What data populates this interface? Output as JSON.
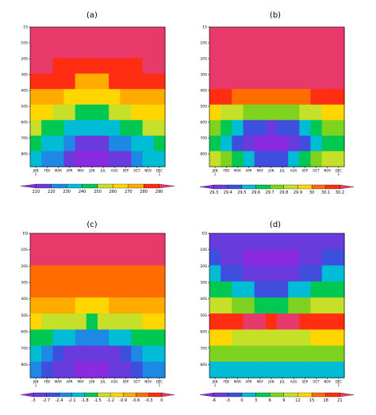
{
  "chart_data": [
    {
      "type": "heatmap",
      "title": "(a)",
      "x_ticks": [
        "JAN",
        "FEB",
        "MAR",
        "APR",
        "MAY",
        "JUN",
        "JUL",
        "AUG",
        "SEP",
        "OCT",
        "NOV",
        "DEC"
      ],
      "x_tick_sub": [
        "1",
        "",
        "",
        "",
        "",
        "",
        "",
        "",
        "",
        "",
        "",
        "1"
      ],
      "y_ticks": [
        "1S",
        "10S",
        "20S",
        "30S",
        "40S",
        "50S",
        "60S",
        "70S",
        "80S"
      ],
      "colorbar_values": [
        210,
        220,
        230,
        240,
        250,
        260,
        270,
        280,
        290
      ],
      "colorbar_labels": [
        "210",
        "220",
        "230",
        "240",
        "250",
        "260",
        "270",
        "280",
        "290"
      ],
      "grid": [
        [
          291,
          291,
          291,
          291,
          291,
          291,
          291,
          291,
          291,
          291,
          291,
          291
        ],
        [
          291,
          291,
          291,
          291,
          291,
          291,
          291,
          291,
          291,
          291,
          291,
          291
        ],
        [
          291,
          291,
          290,
          289,
          288,
          287,
          287,
          288,
          289,
          290,
          291,
          291
        ],
        [
          286,
          285,
          283,
          281,
          279,
          278,
          279,
          281,
          283,
          285,
          286,
          286
        ],
        [
          276,
          274,
          271,
          268,
          266,
          264,
          265,
          268,
          271,
          274,
          276,
          276
        ],
        [
          264,
          261,
          257,
          253,
          250,
          248,
          249,
          253,
          257,
          261,
          264,
          264
        ],
        [
          252,
          248,
          243,
          238,
          234,
          231,
          232,
          237,
          242,
          247,
          251,
          252
        ],
        [
          241,
          237,
          231,
          225,
          220,
          216,
          217,
          223,
          229,
          235,
          240,
          241
        ],
        [
          232,
          228,
          222,
          216,
          210,
          206,
          207,
          213,
          219,
          226,
          231,
          232
        ]
      ]
    },
    {
      "type": "heatmap",
      "title": "(b)",
      "x_ticks": [
        "JAN",
        "FEB",
        "MAR",
        "APR",
        "MAY",
        "JUN",
        "JUL",
        "AUG",
        "SEP",
        "OCT",
        "NOV",
        "DEC"
      ],
      "x_tick_sub": [
        "1",
        "",
        "",
        "",
        "",
        "",
        "",
        "",
        "",
        "",
        "",
        "1"
      ],
      "y_ticks": [
        "1S",
        "10S",
        "20S",
        "30S",
        "40S",
        "50S",
        "60S",
        "70S",
        "80S"
      ],
      "colorbar_values": [
        29.3,
        29.4,
        29.5,
        29.6,
        29.7,
        29.8,
        29.9,
        30,
        30.1,
        30.2
      ],
      "colorbar_labels": [
        "29.3",
        "29.4",
        "29.5",
        "29.6",
        "29.7",
        "29.8",
        "29.9",
        "30",
        "30.1",
        "30.2"
      ],
      "grid": [
        [
          30.3,
          30.3,
          30.3,
          30.3,
          30.3,
          30.3,
          30.3,
          30.3,
          30.3,
          30.3,
          30.3,
          30.3
        ],
        [
          30.3,
          30.3,
          30.3,
          30.3,
          30.3,
          30.3,
          30.3,
          30.3,
          30.3,
          30.3,
          30.3,
          30.3
        ],
        [
          30.3,
          30.3,
          30.3,
          30.3,
          30.3,
          30.3,
          30.3,
          30.3,
          30.3,
          30.3,
          30.3,
          30.3
        ],
        [
          30.3,
          30.3,
          30.3,
          30.3,
          30.3,
          30.3,
          30.3,
          30.3,
          30.3,
          30.3,
          30.3,
          30.3
        ],
        [
          30.2,
          30.2,
          30.1,
          30.1,
          30.1,
          30.1,
          30.1,
          30.1,
          30.1,
          30.2,
          30.2,
          30.2
        ],
        [
          30.0,
          29.9,
          29.9,
          29.8,
          29.8,
          29.8,
          29.8,
          29.8,
          29.9,
          29.9,
          30.0,
          30.0
        ],
        [
          29.8,
          29.7,
          29.6,
          29.5,
          29.5,
          29.4,
          29.5,
          29.5,
          29.6,
          29.7,
          29.8,
          29.8
        ],
        [
          29.7,
          29.6,
          29.5,
          29.4,
          29.3,
          29.3,
          29.3,
          29.4,
          29.5,
          29.6,
          29.7,
          29.7
        ],
        [
          29.9,
          29.8,
          29.7,
          29.6,
          29.5,
          29.5,
          29.5,
          29.6,
          29.7,
          29.8,
          29.9,
          29.9
        ]
      ]
    },
    {
      "type": "heatmap",
      "title": "(c)",
      "x_ticks": [
        "JAN",
        "FEB",
        "MAR",
        "APR",
        "MAY",
        "JUN",
        "JUL",
        "AUG",
        "SEP",
        "OCT",
        "NOV",
        "DEC"
      ],
      "x_tick_sub": [
        "1",
        "",
        "",
        "",
        "",
        "",
        "",
        "",
        "",
        "",
        "",
        "1"
      ],
      "y_ticks": [
        "EQ",
        "10S",
        "20S",
        "30S",
        "40S",
        "50S",
        "60S",
        "70S",
        "80S"
      ],
      "colorbar_values": [
        -3,
        -2.7,
        -2.4,
        -2.1,
        -1.8,
        -1.5,
        -1.2,
        -0.9,
        -0.6,
        -0.3,
        0
      ],
      "colorbar_labels": [
        "-3",
        "-2.7",
        "-2.4",
        "-2.1",
        "-1.8",
        "-1.5",
        "-1.2",
        "-0.9",
        "-0.6",
        "-0.3",
        "0"
      ],
      "grid": [
        [
          0.05,
          0.05,
          0.05,
          0.05,
          0.05,
          0.05,
          0.05,
          0.05,
          0.05,
          0.05,
          0.05,
          0.05
        ],
        [
          0.05,
          0.05,
          0.05,
          0.05,
          0.05,
          0.05,
          0.05,
          0.05,
          0.05,
          0.05,
          0.05,
          0.05
        ],
        [
          -0.45,
          -0.45,
          -0.45,
          -0.45,
          -0.45,
          -0.45,
          -0.45,
          -0.45,
          -0.45,
          -0.45,
          -0.45,
          -0.45
        ],
        [
          -0.45,
          -0.45,
          -0.5,
          -0.5,
          -0.55,
          -0.55,
          -0.55,
          -0.5,
          -0.5,
          -0.45,
          -0.45,
          -0.45
        ],
        [
          -0.75,
          -0.75,
          -0.8,
          -0.85,
          -0.9,
          -0.9,
          -0.9,
          -0.85,
          -0.8,
          -0.75,
          -0.75,
          -0.75
        ],
        [
          -1.1,
          -1.2,
          -1.3,
          -1.4,
          -1.45,
          -1.5,
          -1.45,
          -1.4,
          -1.3,
          -1.2,
          -1.1,
          -1.1
        ],
        [
          -1.6,
          -1.7,
          -1.9,
          -2.0,
          -2.1,
          -2.1,
          -2.1,
          -2.0,
          -1.9,
          -1.7,
          -1.6,
          -1.6
        ],
        [
          -2.0,
          -2.2,
          -2.5,
          -2.7,
          -2.8,
          -2.9,
          -2.8,
          -2.7,
          -2.5,
          -2.2,
          -2.0,
          -2.0
        ],
        [
          -2.2,
          -2.4,
          -2.7,
          -2.9,
          -3.0,
          -3.1,
          -3.0,
          -2.9,
          -2.7,
          -2.4,
          -2.2,
          -2.2
        ]
      ]
    },
    {
      "type": "heatmap",
      "title": "(d)",
      "x_ticks": [
        "JAN",
        "FEB",
        "MAR",
        "APR",
        "MAY",
        "JUN",
        "JUL",
        "AUG",
        "SEP",
        "OCT",
        "NOV",
        "DEC"
      ],
      "x_tick_sub": [
        "1",
        "",
        "",
        "",
        "",
        "",
        "",
        "",
        "",
        "",
        "",
        "1"
      ],
      "y_ticks": [
        "EQ",
        "10S",
        "20S",
        "30S",
        "40S",
        "50S",
        "60S",
        "70S",
        "80S"
      ],
      "colorbar_values": [
        -6,
        -3,
        0,
        3,
        6,
        9,
        12,
        15,
        18,
        21
      ],
      "colorbar_labels": [
        "-6",
        "-3",
        "0",
        "3",
        "6",
        "9",
        "12",
        "15",
        "18",
        "21"
      ],
      "grid": [
        [
          -4,
          -4,
          -4,
          -4,
          -4,
          -4,
          -4,
          -4,
          -4,
          -4,
          -4,
          -4
        ],
        [
          -1,
          -3,
          -5,
          -6,
          -6,
          -6,
          -6,
          -6,
          -5,
          -3,
          -1,
          -1
        ],
        [
          2,
          0,
          -2,
          -4,
          -5,
          -5,
          -5,
          -4,
          -2,
          0,
          2,
          2
        ],
        [
          5,
          4,
          2,
          1,
          0,
          -1,
          0,
          1,
          2,
          4,
          5,
          5
        ],
        [
          12,
          10,
          8,
          7,
          6,
          6,
          6,
          7,
          8,
          10,
          12,
          12
        ],
        [
          20,
          20,
          21,
          22,
          22,
          20,
          22,
          22,
          21,
          20,
          20,
          20
        ],
        [
          14,
          13,
          12,
          12,
          11,
          11,
          11,
          12,
          12,
          13,
          14,
          14
        ],
        [
          9,
          8,
          8,
          7,
          7,
          7,
          7,
          7,
          8,
          8,
          9,
          9
        ],
        [
          3,
          3,
          2,
          2,
          1,
          1,
          1,
          2,
          2,
          3,
          3,
          3
        ]
      ]
    }
  ]
}
